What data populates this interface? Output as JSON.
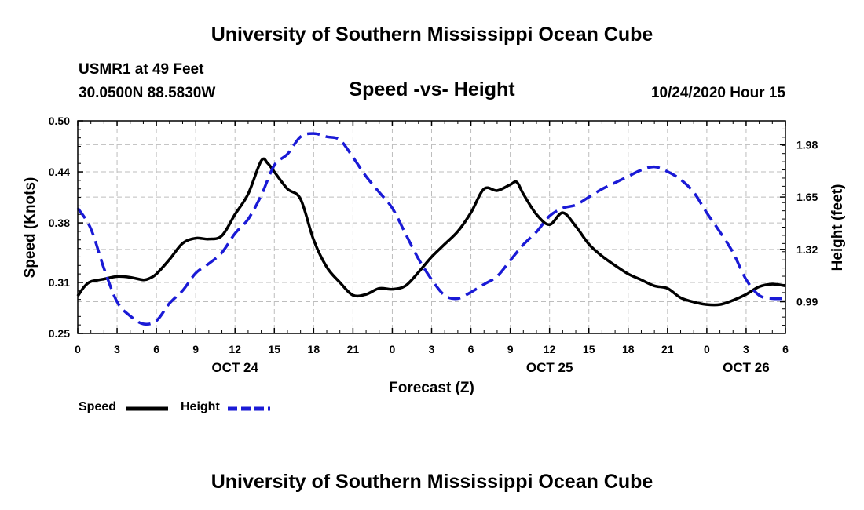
{
  "header": {
    "title": "University of Southern Mississippi Ocean Cube",
    "station": "USMR1 at 49 Feet",
    "coordinates": "30.0500N 88.5830W",
    "datetime": "10/24/2020 Hour 15"
  },
  "footer": {
    "title": "University of Southern Mississippi Ocean Cube"
  },
  "legend": {
    "speed_label": "Speed",
    "height_label": "Height"
  },
  "colors": {
    "speed": "#000000",
    "height": "#1a1ad6",
    "grid": "#bdbdbd"
  },
  "chart_data": {
    "type": "line",
    "title": "Speed -vs- Height",
    "xlabel": "Forecast (Z)",
    "ylabel": "Speed (Knots)",
    "y2label": "Height (feet)",
    "xlim": [
      0,
      54
    ],
    "ylim": [
      0.25,
      0.5
    ],
    "y2lim": [
      0.79,
      2.13
    ],
    "x_ticks": [
      0,
      3,
      6,
      9,
      12,
      15,
      18,
      21,
      24,
      27,
      30,
      33,
      36,
      39,
      42,
      45,
      48,
      51,
      54
    ],
    "x_tick_labels": [
      "0",
      "3",
      "6",
      "9",
      "12",
      "15",
      "18",
      "21",
      "0",
      "3",
      "6",
      "9",
      "12",
      "15",
      "18",
      "21",
      "0",
      "3",
      "6"
    ],
    "date_labels": [
      {
        "x": 12,
        "label": "OCT 24"
      },
      {
        "x": 36,
        "label": "OCT 25"
      },
      {
        "x": 51,
        "label": "OCT 26"
      }
    ],
    "y_ticks": [
      0.25,
      0.31,
      0.38,
      0.44,
      0.5
    ],
    "y_tick_labels": [
      "0.25",
      "0.31",
      "0.38",
      "0.44",
      "0.50"
    ],
    "y2_ticks": [
      0.99,
      1.32,
      1.65,
      1.98
    ],
    "y2_tick_labels": [
      "0.99",
      "1.32",
      "1.65",
      "1.98"
    ],
    "grid": true,
    "series": [
      {
        "name": "Speed",
        "axis": "left",
        "style": "solid",
        "x": [
          0,
          0.5,
          1,
          2,
          3,
          4,
          5,
          5.5,
          6,
          7,
          8,
          9,
          10,
          11,
          12,
          13,
          14,
          14.5,
          15,
          16,
          17,
          18,
          19,
          20,
          21,
          22,
          23,
          24,
          25,
          26,
          27,
          28,
          29,
          30,
          31,
          32,
          33,
          33.5,
          34,
          35,
          36,
          37,
          38,
          39,
          40,
          41,
          42,
          43,
          44,
          45,
          46,
          47,
          48,
          49,
          50,
          51,
          52,
          53,
          54
        ],
        "values": [
          0.294,
          0.305,
          0.311,
          0.314,
          0.317,
          0.316,
          0.313,
          0.315,
          0.32,
          0.337,
          0.356,
          0.362,
          0.361,
          0.365,
          0.39,
          0.414,
          0.453,
          0.45,
          0.44,
          0.42,
          0.408,
          0.36,
          0.328,
          0.31,
          0.295,
          0.296,
          0.303,
          0.302,
          0.306,
          0.322,
          0.34,
          0.355,
          0.37,
          0.392,
          0.42,
          0.418,
          0.425,
          0.428,
          0.414,
          0.39,
          0.378,
          0.392,
          0.376,
          0.355,
          0.341,
          0.33,
          0.32,
          0.313,
          0.306,
          0.303,
          0.292,
          0.287,
          0.284,
          0.284,
          0.289,
          0.296,
          0.305,
          0.308,
          0.306
        ]
      },
      {
        "name": "Height",
        "axis": "right",
        "style": "dashed",
        "x": [
          0,
          1,
          2,
          3,
          4,
          5,
          6,
          7,
          8,
          9,
          10,
          11,
          12,
          13,
          14,
          15,
          16,
          17,
          18,
          19,
          20,
          21,
          22,
          23,
          24,
          25,
          26,
          27,
          28,
          29,
          30,
          31,
          32,
          33,
          34,
          35,
          36,
          37,
          38,
          39,
          40,
          41,
          42,
          43,
          44,
          45,
          46,
          47,
          48,
          49,
          50,
          51,
          52,
          53,
          54
        ],
        "values": [
          1.58,
          1.45,
          1.2,
          0.99,
          0.9,
          0.85,
          0.87,
          0.98,
          1.06,
          1.17,
          1.23,
          1.3,
          1.42,
          1.51,
          1.66,
          1.85,
          1.92,
          2.03,
          2.05,
          2.03,
          2.01,
          1.9,
          1.78,
          1.68,
          1.58,
          1.42,
          1.26,
          1.13,
          1.03,
          1.01,
          1.05,
          1.1,
          1.15,
          1.25,
          1.35,
          1.43,
          1.53,
          1.58,
          1.6,
          1.65,
          1.7,
          1.74,
          1.78,
          1.82,
          1.84,
          1.81,
          1.76,
          1.68,
          1.55,
          1.43,
          1.3,
          1.13,
          1.03,
          1.01,
          1.01
        ]
      }
    ]
  }
}
